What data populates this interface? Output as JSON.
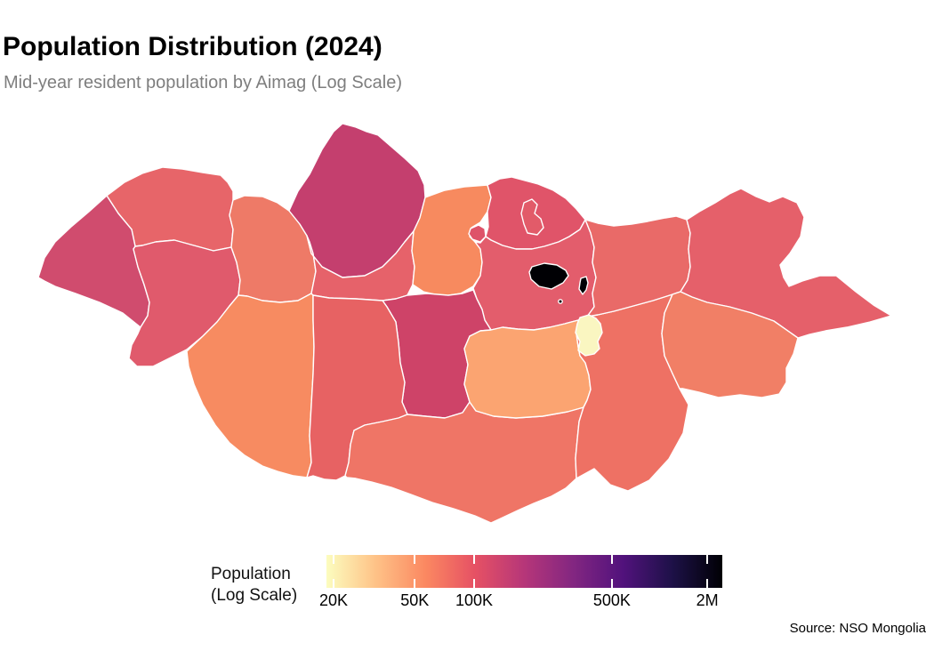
{
  "header": {
    "title": "Population Distribution (2024)",
    "subtitle": "Mid-year resident population by Aimag (Log Scale)"
  },
  "caption": "Source: NSO Mongolia",
  "legend": {
    "title_line1": "Population",
    "title_line2": "(Log Scale)",
    "gradient_stops": [
      "#FCFDBF",
      "#FEC287",
      "#FB8861",
      "#E65164",
      "#B63679",
      "#822681",
      "#51127C",
      "#1D1147",
      "#000004"
    ],
    "ticks": [
      {
        "label": "20K",
        "pos_pct": 1.8
      },
      {
        "label": "50K",
        "pos_pct": 22.3
      },
      {
        "label": "100K",
        "pos_pct": 37.3
      },
      {
        "label": "500K",
        "pos_pct": 72.1
      },
      {
        "label": "2M",
        "pos_pct": 96.2
      }
    ]
  },
  "map": {
    "border_color": "#FFFFFF",
    "region_fills": {
      "bayan_olgii": "#D04C6E",
      "uvs": "#E76569",
      "khovd": "#E05A6C",
      "zavkhan": "#EE7A67",
      "govi_altai": "#F78B61",
      "khovsgol": "#C43F6E",
      "arkhangai": "#E6626A",
      "bulgan": "#F78A5F",
      "orkhon": "#DE5369",
      "selenge": "#E05469",
      "darkhan_uul": "#E25B69",
      "tov": "#E35D6C",
      "ovorkhangai": "#CE4368",
      "bayankhongor": "#E76263",
      "omnogovi": "#EF7566",
      "dundgovi": "#FBA471",
      "dornogovi": "#EE7164",
      "govisumber": "#FAF6C1",
      "khentii": "#E96A68",
      "dornod": "#E5606A",
      "sukhbaatar": "#F17F66",
      "ulaanbaatar": "#000004",
      "baganuur": "#000004",
      "bagakhangai": "#000004"
    }
  }
}
